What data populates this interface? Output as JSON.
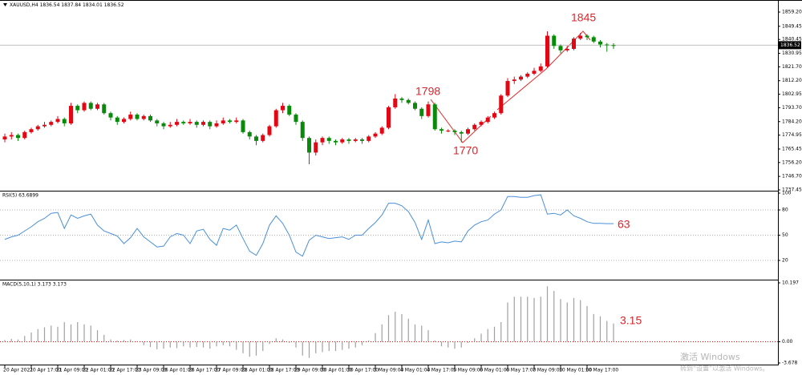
{
  "chart_data": [
    {
      "type": "candlestick",
      "title": "XAUUSD,H4 1836.54 1837.84 1834.01 1836.52",
      "up_color": "#e30613",
      "down_color": "#0a8a0a",
      "categories": [
        "20 Apr 2021",
        null,
        null,
        null,
        "20 Apr 17:00",
        null,
        null,
        null,
        "21 Apr 09:00",
        null,
        null,
        null,
        "22 Apr 01:00",
        null,
        null,
        null,
        "22 Apr 17:00",
        null,
        null,
        null,
        "23 Apr 09:00",
        null,
        null,
        null,
        "26 Apr 01:00",
        null,
        null,
        null,
        "26 Apr 17:00",
        null,
        null,
        null,
        "27 Apr 09:00",
        null,
        null,
        null,
        "28 Apr 01:00",
        null,
        null,
        null,
        "28 Apr 17:00",
        null,
        null,
        null,
        "29 Apr 09:00",
        null,
        null,
        null,
        "30 Apr 01:00",
        null,
        null,
        null,
        "30 Apr 17:00",
        null,
        null,
        null,
        "3 May 09:00",
        null,
        null,
        null,
        "4 May 01:00",
        null,
        null,
        null,
        "4 May 17:00",
        null,
        null,
        null,
        "5 May 09:00",
        null,
        null,
        null,
        "6 May 01:00",
        null,
        null,
        null,
        "6 May 17:00",
        null,
        null,
        null,
        "7 May 09:00",
        null,
        null,
        null,
        "10 May 01:00",
        null,
        null,
        null,
        "10 May 17:00",
        null,
        null,
        null,
        null
      ],
      "open": [
        1772,
        1774,
        1775,
        1773,
        1777,
        1779,
        1781,
        1782,
        1784,
        1786,
        1783,
        1795,
        1792,
        1797,
        1793,
        1796,
        1790,
        1787,
        1784,
        1786,
        1789,
        1786,
        1788,
        1785,
        1783,
        1781,
        1782,
        1784,
        1783,
        1784,
        1782,
        1784,
        1781,
        1783,
        1785,
        1784,
        1785,
        1777,
        1774,
        1771,
        1775,
        1781,
        1792,
        1795,
        1789,
        1784,
        1773,
        1763,
        1770,
        1773,
        1771,
        1770,
        1772,
        1771,
        1772,
        1771,
        1774,
        1776,
        1780,
        1794,
        1800,
        1799,
        1797,
        1793,
        1788,
        1796,
        1779,
        1778,
        1778,
        1777,
        1776,
        1779,
        1782,
        1784,
        1787,
        1790,
        1802,
        1812,
        1813,
        1815,
        1817,
        1819,
        1822,
        1843,
        1836,
        1833,
        1834,
        1841,
        1843,
        1842,
        1839,
        1837,
        1836.54
      ],
      "high": [
        1776,
        1777,
        1776,
        1778,
        1780,
        1782,
        1784,
        1785,
        1788,
        1787,
        1797,
        1796,
        1798,
        1798,
        1797,
        1797,
        1791,
        1788,
        1787,
        1791,
        1790,
        1789,
        1789,
        1786,
        1784,
        1784,
        1786,
        1785,
        1786,
        1785,
        1785,
        1785,
        1785,
        1787,
        1786,
        1787,
        1786,
        1778,
        1775,
        1776,
        1782,
        1793,
        1797,
        1796,
        1790,
        1785,
        1774,
        1772,
        1774,
        1774,
        1772,
        1773,
        1773,
        1773,
        1773,
        1775,
        1777,
        1781,
        1795,
        1803,
        1801,
        1800,
        1798,
        1794,
        1798,
        1797,
        1780,
        1779,
        1779,
        1778,
        1780,
        1783,
        1785,
        1788,
        1791,
        1803,
        1814,
        1815,
        1816,
        1818,
        1821,
        1824,
        1846,
        1844,
        1837,
        1836,
        1842,
        1845,
        1844,
        1843,
        1840,
        1838,
        1837.84
      ],
      "low": [
        1770,
        1772,
        1771,
        1772,
        1776,
        1778,
        1780,
        1781,
        1783,
        1781,
        1782,
        1790,
        1791,
        1792,
        1792,
        1789,
        1785,
        1782,
        1783,
        1785,
        1785,
        1785,
        1784,
        1781,
        1779,
        1780,
        1781,
        1782,
        1782,
        1780,
        1781,
        1779,
        1780,
        1782,
        1783,
        1783,
        1776,
        1772,
        1768,
        1770,
        1774,
        1780,
        1790,
        1788,
        1782,
        1771,
        1755,
        1761,
        1768,
        1769,
        1768,
        1769,
        1769,
        1770,
        1769,
        1770,
        1773,
        1775,
        1779,
        1793,
        1797,
        1796,
        1792,
        1786,
        1787,
        1778,
        1776,
        1777,
        1775,
        1770,
        1775,
        1778,
        1781,
        1783,
        1786,
        1789,
        1801,
        1810,
        1812,
        1814,
        1816,
        1818,
        1821,
        1834,
        1831,
        1832,
        1833,
        1840,
        1840,
        1838,
        1835,
        1832,
        1834.01
      ],
      "close": [
        1774,
        1775,
        1773,
        1777,
        1779,
        1781,
        1782,
        1784,
        1786,
        1783,
        1795,
        1792,
        1797,
        1793,
        1796,
        1790,
        1787,
        1784,
        1786,
        1789,
        1786,
        1788,
        1785,
        1783,
        1781,
        1782,
        1784,
        1783,
        1784,
        1782,
        1784,
        1781,
        1783,
        1785,
        1784,
        1785,
        1777,
        1774,
        1771,
        1775,
        1781,
        1792,
        1795,
        1789,
        1784,
        1773,
        1763,
        1770,
        1773,
        1771,
        1770,
        1772,
        1771,
        1772,
        1771,
        1774,
        1776,
        1780,
        1794,
        1800,
        1799,
        1797,
        1793,
        1788,
        1796,
        1779,
        1778,
        1778,
        1777,
        1776,
        1779,
        1782,
        1784,
        1787,
        1790,
        1802,
        1812,
        1813,
        1815,
        1817,
        1819,
        1822,
        1843,
        1836,
        1833,
        1834,
        1841,
        1843,
        1842,
        1839,
        1837,
        1836.54,
        1836.52
      ],
      "ylim": [
        1737.45,
        1865.8
      ],
      "yticks": [
        {
          "value": 1859.2,
          "label": "1859.20"
        },
        1849.45,
        1840.45,
        1830.95,
        {
          "value": 1821.7,
          "label": "1821.70"
        },
        {
          "value": 1812.2,
          "label": "1812.20"
        },
        1802.95,
        {
          "value": 1793.7,
          "label": "1793.70"
        },
        {
          "value": 1784.2,
          "label": "1784.20"
        },
        1774.95,
        1765.45,
        {
          "value": 1756.2,
          "label": "1756.20"
        },
        {
          "value": 1746.7,
          "label": "1746.70"
        },
        1737.45
      ],
      "annotations": [
        "1798",
        "1770",
        "1845"
      ]
    },
    {
      "type": "line",
      "title": "RSI(5) 63.6899",
      "color": "#4a90d9",
      "grid": true,
      "grid_color": "#b0b0b0",
      "values": [
        45,
        48,
        50,
        55,
        60,
        66,
        70,
        76,
        77,
        58,
        74,
        70,
        73,
        75,
        62,
        55,
        52,
        49,
        40,
        47,
        58,
        48,
        42,
        36,
        37,
        48,
        52,
        50,
        40,
        55,
        57,
        45,
        38,
        58,
        56,
        62,
        46,
        31,
        26,
        40,
        62,
        73,
        64,
        50,
        30,
        25,
        44,
        50,
        48,
        46,
        47,
        48,
        45,
        50,
        50,
        58,
        65,
        74,
        88,
        88,
        85,
        78,
        65,
        45,
        68,
        40,
        42,
        41,
        43,
        42,
        55,
        62,
        66,
        68,
        75,
        80,
        96,
        96,
        95,
        95,
        97,
        98,
        75,
        76,
        74,
        80,
        73,
        70,
        66,
        64,
        64,
        63.69,
        63.69
      ],
      "ylim": [
        0,
        100
      ],
      "yticks": [
        100,
        80,
        50,
        20
      ],
      "annotations": [
        "63"
      ]
    },
    {
      "type": "histogram",
      "title": "MACD(5,10,1) 3.173 3.173",
      "color": "#a0a0a0",
      "grid": true,
      "grid_color": "#ff0000",
      "values": [
        0.3,
        0.5,
        0.4,
        1.0,
        1.6,
        2.2,
        2.5,
        2.8,
        2.6,
        3.4,
        3.0,
        3.4,
        3.0,
        2.8,
        2.0,
        1.2,
        0.4,
        0.2,
        0.3,
        0.4,
        0.1,
        -0.6,
        -0.9,
        -1.3,
        -1.2,
        -1.0,
        -1.1,
        -0.8,
        -1.0,
        -0.9,
        -1.0,
        -1.2,
        -0.8,
        -0.6,
        -0.8,
        -1.4,
        -2.0,
        -2.6,
        -2.4,
        -1.6,
        -0.4,
        0.6,
        0.4,
        -0.2,
        -1.0,
        -2.4,
        -2.8,
        -2.0,
        -1.8,
        -1.6,
        -1.6,
        -1.4,
        -1.2,
        -1.0,
        -0.6,
        0.2,
        1.5,
        3.0,
        4.6,
        5.2,
        4.8,
        4.0,
        3.0,
        2.8,
        2.0,
        0.2,
        -0.8,
        -1.0,
        -1.2,
        -1.0,
        -0.2,
        0.6,
        1.4,
        2.2,
        2.6,
        3.4,
        6.8,
        7.8,
        7.8,
        7.8,
        7.6,
        7.8,
        9.6,
        8.8,
        7.4,
        6.8,
        7.6,
        7.2,
        6.2,
        4.8,
        4.4,
        3.6,
        3.173
      ],
      "ylim": [
        -3.678,
        10.197
      ],
      "yticks": [
        10.197,
        {
          "value": 0,
          "label": "0.00"
        },
        -3.678
      ],
      "annotations": [
        "3.15"
      ]
    }
  ],
  "watermark": [
    "激活 Windows",
    "转到“设置”以激活 Windows。"
  ]
}
